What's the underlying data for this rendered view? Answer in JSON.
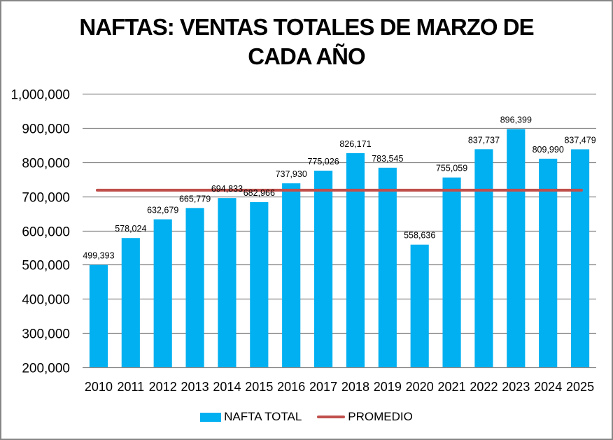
{
  "chart_data": {
    "type": "bar",
    "title_lines": [
      "NAFTAS: VENTAS TOTALES DE MARZO DE",
      "CADA AÑO"
    ],
    "title": "NAFTAS: VENTAS TOTALES DE MARZO DE CADA AÑO",
    "xlabel": "",
    "ylabel": "",
    "categories": [
      "2010",
      "2011",
      "2012",
      "2013",
      "2014",
      "2015",
      "2016",
      "2017",
      "2018",
      "2019",
      "2020",
      "2021",
      "2022",
      "2023",
      "2024",
      "2025"
    ],
    "series": [
      {
        "name": "NAFTA TOTAL",
        "type": "bar",
        "color": "#00b0f0",
        "values": [
          499393,
          578024,
          632679,
          665779,
          694833,
          682966,
          737930,
          775026,
          826171,
          783545,
          558636,
          755059,
          837737,
          896399,
          809990,
          837479
        ],
        "labels": [
          "499,393",
          "578,024",
          "632,679",
          "665,779",
          "694,833",
          "682,966",
          "737,930",
          "775,026",
          "826,171",
          "783,545",
          "558,636",
          "755,059",
          "837,737",
          "896,399",
          "809,990",
          "837,479"
        ]
      },
      {
        "name": "PROMEDIO",
        "type": "line",
        "color": "#c0504d",
        "value_estimated": 718000
      }
    ],
    "ylim": [
      200000,
      1000000
    ],
    "yticks": [
      200000,
      300000,
      400000,
      500000,
      600000,
      700000,
      800000,
      900000,
      1000000
    ],
    "ytick_labels": [
      "200,000",
      "300,000",
      "400,000",
      "500,000",
      "600,000",
      "700,000",
      "800,000",
      "900,000",
      "1,000,000"
    ],
    "grid": true,
    "legend": [
      "NAFTA TOTAL",
      "PROMEDIO"
    ],
    "legend_position": "bottom"
  }
}
